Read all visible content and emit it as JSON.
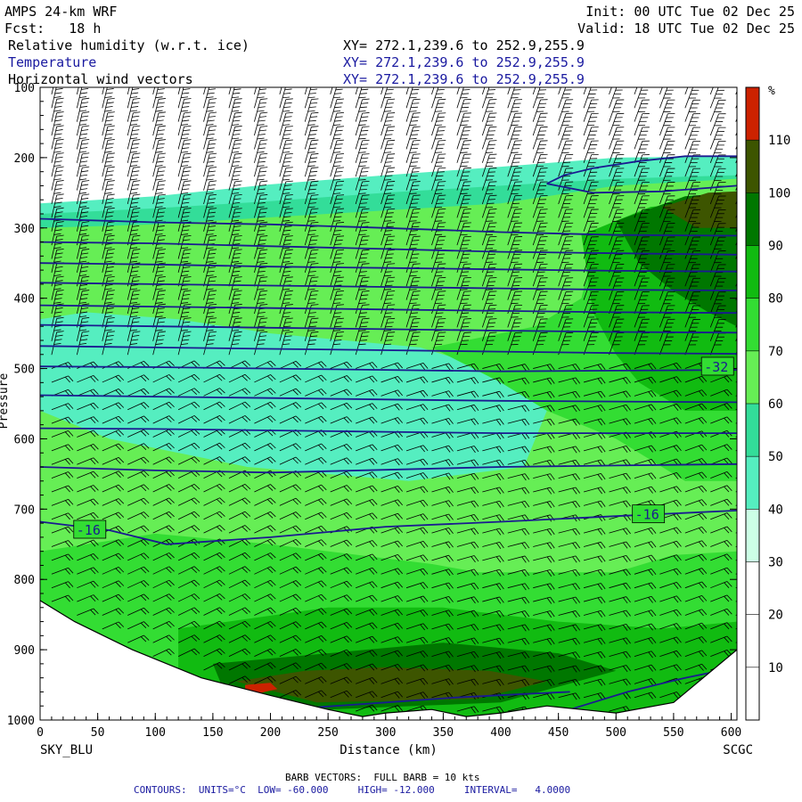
{
  "header": {
    "model": "AMPS 24-km WRF",
    "fcst": "Fcst:   18 h",
    "init": "Init: 00 UTC Tue 02 Dec 25",
    "valid": "Valid: 18 UTC Tue 02 Dec 25",
    "fields": [
      {
        "name": "Relative humidity (w.r.t. ice)",
        "xy": "XY= 272.1,239.6 to 252.9,255.9"
      },
      {
        "name": "Temperature",
        "xy": "XY= 272.1,239.6 to 252.9,255.9"
      },
      {
        "name": "Horizontal wind vectors",
        "xy": "XY= 272.1,239.6 to 252.9,255.9"
      }
    ]
  },
  "footer": {
    "barb": "BARB VECTORS:  FULL BARB = 10 kts",
    "contours": "CONTOURS:  UNITS=°C  LOW= -60.000     HIGH= -12.000     INTERVAL=   4.0000"
  },
  "chart_data": {
    "type": "heatmap",
    "title": "Relative humidity (w.r.t. ice)",
    "xlabel": "Distance (km)",
    "ylabel": "Pressure",
    "x_ticks": [
      0,
      50,
      100,
      150,
      200,
      250,
      300,
      350,
      400,
      450,
      500,
      550,
      600
    ],
    "y_ticks": [
      100,
      200,
      300,
      400,
      500,
      600,
      700,
      800,
      900,
      1000
    ],
    "xlim": [
      0,
      605
    ],
    "ylim": [
      1000,
      100
    ],
    "left_endpoint": "SKY_BLU",
    "right_endpoint": "SCGC",
    "colorbar": {
      "unit": "%",
      "levels": [
        10,
        20,
        30,
        40,
        50,
        60,
        70,
        80,
        90,
        100,
        110
      ],
      "colors": [
        "#ffffff",
        "#ffffff",
        "#ffffff",
        "#ccffe6",
        "#55eec0",
        "#33dd99",
        "#66ee55",
        "#33dd33",
        "#11bb11",
        "#007700",
        "#3d5500",
        "#cc2200"
      ]
    },
    "rh_regions": [
      {
        "level": 40,
        "poly": [
          [
            0,
            265
          ],
          [
            100,
            255
          ],
          [
            200,
            238
          ],
          [
            300,
            225
          ],
          [
            400,
            213
          ],
          [
            500,
            200
          ],
          [
            605,
            198
          ],
          [
            605,
            1000
          ],
          [
            0,
            1000
          ]
        ]
      },
      {
        "level": 50,
        "poly": [
          [
            0,
            280
          ],
          [
            100,
            272
          ],
          [
            200,
            262
          ],
          [
            300,
            250
          ],
          [
            400,
            240
          ],
          [
            500,
            230
          ],
          [
            605,
            225
          ],
          [
            605,
            1000
          ],
          [
            0,
            1000
          ]
        ]
      },
      {
        "level": 60,
        "poly": [
          [
            0,
            300
          ],
          [
            100,
            295
          ],
          [
            200,
            285
          ],
          [
            300,
            275
          ],
          [
            400,
            265
          ],
          [
            500,
            240
          ],
          [
            605,
            230
          ],
          [
            605,
            1000
          ],
          [
            0,
            1000
          ]
        ]
      },
      {
        "level": 30,
        "poly": [
          [
            60,
            500
          ],
          [
            160,
            510
          ],
          [
            280,
            520
          ],
          [
            360,
            545
          ],
          [
            400,
            580
          ],
          [
            360,
            625
          ],
          [
            240,
            615
          ],
          [
            120,
            575
          ],
          [
            60,
            535
          ]
        ]
      },
      {
        "level": 40,
        "poly": [
          [
            40,
            420
          ],
          [
            120,
            430
          ],
          [
            200,
            450
          ],
          [
            330,
            470
          ],
          [
            390,
            500
          ],
          [
            440,
            560
          ],
          [
            420,
            640
          ],
          [
            320,
            660
          ],
          [
            180,
            640
          ],
          [
            60,
            600
          ],
          [
            0,
            560
          ],
          [
            0,
            430
          ]
        ]
      },
      {
        "level": 70,
        "poly": [
          [
            340,
            470
          ],
          [
            430,
            440
          ],
          [
            470,
            400
          ],
          [
            480,
            330
          ],
          [
            520,
            300
          ],
          [
            580,
            300
          ],
          [
            605,
            300
          ],
          [
            605,
            660
          ],
          [
            560,
            660
          ],
          [
            500,
            600
          ],
          [
            440,
            560
          ],
          [
            400,
            520
          ]
        ]
      },
      {
        "level": 80,
        "poly": [
          [
            470,
            310
          ],
          [
            530,
            270
          ],
          [
            605,
            260
          ],
          [
            605,
            560
          ],
          [
            560,
            560
          ],
          [
            520,
            520
          ],
          [
            500,
            480
          ],
          [
            480,
            420
          ]
        ]
      },
      {
        "level": 90,
        "poly": [
          [
            500,
            290
          ],
          [
            560,
            255
          ],
          [
            605,
            250
          ],
          [
            605,
            440
          ],
          [
            580,
            420
          ],
          [
            550,
            390
          ],
          [
            520,
            350
          ]
        ]
      },
      {
        "level": 100,
        "poly": [
          [
            540,
            270
          ],
          [
            580,
            250
          ],
          [
            605,
            248
          ],
          [
            605,
            300
          ],
          [
            570,
            300
          ]
        ]
      },
      {
        "level": 70,
        "poly": [
          [
            0,
            760
          ],
          [
            100,
            735
          ],
          [
            200,
            750
          ],
          [
            300,
            770
          ],
          [
            400,
            790
          ],
          [
            500,
            770
          ],
          [
            605,
            760
          ],
          [
            605,
            1000
          ],
          [
            0,
            1000
          ]
        ]
      },
      {
        "level": 60,
        "poly": [
          [
            200,
            670
          ],
          [
            350,
            690
          ],
          [
            500,
            700
          ],
          [
            560,
            760
          ],
          [
            500,
            790
          ],
          [
            380,
            790
          ],
          [
            280,
            760
          ],
          [
            200,
            720
          ]
        ]
      },
      {
        "level": 80,
        "poly": [
          [
            120,
            870
          ],
          [
            250,
            840
          ],
          [
            350,
            840
          ],
          [
            450,
            860
          ],
          [
            540,
            870
          ],
          [
            605,
            860
          ],
          [
            605,
            1000
          ],
          [
            120,
            1000
          ]
        ]
      },
      {
        "level": 90,
        "poly": [
          [
            150,
            920
          ],
          [
            250,
            905
          ],
          [
            350,
            890
          ],
          [
            450,
            905
          ],
          [
            500,
            930
          ],
          [
            400,
            975
          ],
          [
            250,
            985
          ],
          [
            160,
            960
          ]
        ]
      },
      {
        "level": 100,
        "poly": [
          [
            170,
            945
          ],
          [
            230,
            930
          ],
          [
            300,
            925
          ],
          [
            390,
            930
          ],
          [
            440,
            945
          ],
          [
            380,
            970
          ],
          [
            240,
            975
          ]
        ]
      },
      {
        "level": 110,
        "poly": [
          [
            178,
            950
          ],
          [
            200,
            947
          ],
          [
            206,
            956
          ],
          [
            190,
            962
          ],
          [
            178,
            958
          ]
        ]
      }
    ],
    "terrain": [
      [
        0,
        830
      ],
      [
        30,
        860
      ],
      [
        80,
        900
      ],
      [
        140,
        940
      ],
      [
        200,
        965
      ],
      [
        250,
        985
      ],
      [
        280,
        995
      ],
      [
        300,
        990
      ],
      [
        340,
        985
      ],
      [
        370,
        995
      ],
      [
        400,
        990
      ],
      [
        440,
        980
      ],
      [
        470,
        985
      ],
      [
        500,
        990
      ],
      [
        550,
        975
      ],
      [
        605,
        900
      ]
    ],
    "temperature_contours": [
      {
        "label": "",
        "points": [
          [
            440,
            237
          ],
          [
            455,
            225
          ],
          [
            480,
            215
          ],
          [
            520,
            205
          ],
          [
            560,
            198
          ],
          [
            605,
            198
          ]
        ]
      },
      {
        "label": "",
        "points": [
          [
            440,
            237
          ],
          [
            480,
            250
          ],
          [
            540,
            248
          ],
          [
            605,
            240
          ]
        ]
      },
      {
        "label": "",
        "points": [
          [
            0,
            287
          ],
          [
            100,
            292
          ],
          [
            200,
            295
          ],
          [
            300,
            300
          ],
          [
            400,
            306
          ],
          [
            500,
            310
          ],
          [
            605,
            311
          ]
        ]
      },
      {
        "label": "",
        "points": [
          [
            0,
            320
          ],
          [
            100,
            322
          ],
          [
            200,
            326
          ],
          [
            300,
            330
          ],
          [
            400,
            334
          ],
          [
            500,
            336
          ],
          [
            605,
            338
          ]
        ]
      },
      {
        "label": "",
        "points": [
          [
            0,
            350
          ],
          [
            100,
            352
          ],
          [
            200,
            355
          ],
          [
            300,
            357
          ],
          [
            400,
            359
          ],
          [
            500,
            361
          ],
          [
            605,
            362
          ]
        ]
      },
      {
        "label": "",
        "points": [
          [
            0,
            378
          ],
          [
            100,
            380
          ],
          [
            200,
            382
          ],
          [
            300,
            384
          ],
          [
            400,
            386
          ],
          [
            500,
            388
          ],
          [
            605,
            389
          ]
        ]
      },
      {
        "label": "",
        "points": [
          [
            0,
            410
          ],
          [
            100,
            412
          ],
          [
            200,
            414
          ],
          [
            300,
            416
          ],
          [
            400,
            418
          ],
          [
            500,
            420
          ],
          [
            605,
            421
          ]
        ]
      },
      {
        "label": "",
        "points": [
          [
            0,
            438
          ],
          [
            100,
            440
          ],
          [
            200,
            442
          ],
          [
            300,
            444
          ],
          [
            400,
            446
          ],
          [
            500,
            448
          ],
          [
            605,
            449
          ]
        ]
      },
      {
        "label": "",
        "points": [
          [
            0,
            468
          ],
          [
            100,
            470
          ],
          [
            200,
            472
          ],
          [
            300,
            474
          ],
          [
            400,
            476
          ],
          [
            500,
            478
          ],
          [
            605,
            479
          ]
        ]
      },
      {
        "label": "-32",
        "label_at": [
          575,
          498
        ],
        "points": [
          [
            0,
            497
          ],
          [
            100,
            498
          ],
          [
            200,
            500
          ],
          [
            300,
            502
          ],
          [
            400,
            504
          ],
          [
            500,
            503
          ],
          [
            605,
            502
          ]
        ]
      },
      {
        "label": "",
        "points": [
          [
            0,
            538
          ],
          [
            100,
            540
          ],
          [
            200,
            542
          ],
          [
            300,
            544
          ],
          [
            400,
            546
          ],
          [
            500,
            547
          ],
          [
            605,
            548
          ]
        ]
      },
      {
        "label": "",
        "points": [
          [
            0,
            585
          ],
          [
            100,
            586
          ],
          [
            200,
            588
          ],
          [
            300,
            590
          ],
          [
            400,
            592
          ],
          [
            500,
            592
          ],
          [
            605,
            592
          ]
        ]
      },
      {
        "label": "",
        "points": [
          [
            0,
            640
          ],
          [
            100,
            645
          ],
          [
            200,
            648
          ],
          [
            300,
            644
          ],
          [
            400,
            640
          ],
          [
            500,
            638
          ],
          [
            605,
            636
          ]
        ]
      },
      {
        "label": "-16",
        "label_at": [
          30,
          730
        ],
        "label2": "-16",
        "label2_at": [
          515,
          708
        ],
        "points": [
          [
            0,
            718
          ],
          [
            60,
            730
          ],
          [
            110,
            750
          ],
          [
            200,
            740
          ],
          [
            300,
            725
          ],
          [
            400,
            718
          ],
          [
            500,
            710
          ],
          [
            605,
            702
          ]
        ]
      },
      {
        "label": "",
        "points": [
          [
            460,
            985
          ],
          [
            510,
            960
          ],
          [
            560,
            940
          ],
          [
            605,
            925
          ]
        ]
      },
      {
        "label": "",
        "points": [
          [
            230,
            983
          ],
          [
            300,
            975
          ],
          [
            360,
            968
          ],
          [
            420,
            963
          ],
          [
            460,
            960
          ]
        ]
      }
    ]
  }
}
